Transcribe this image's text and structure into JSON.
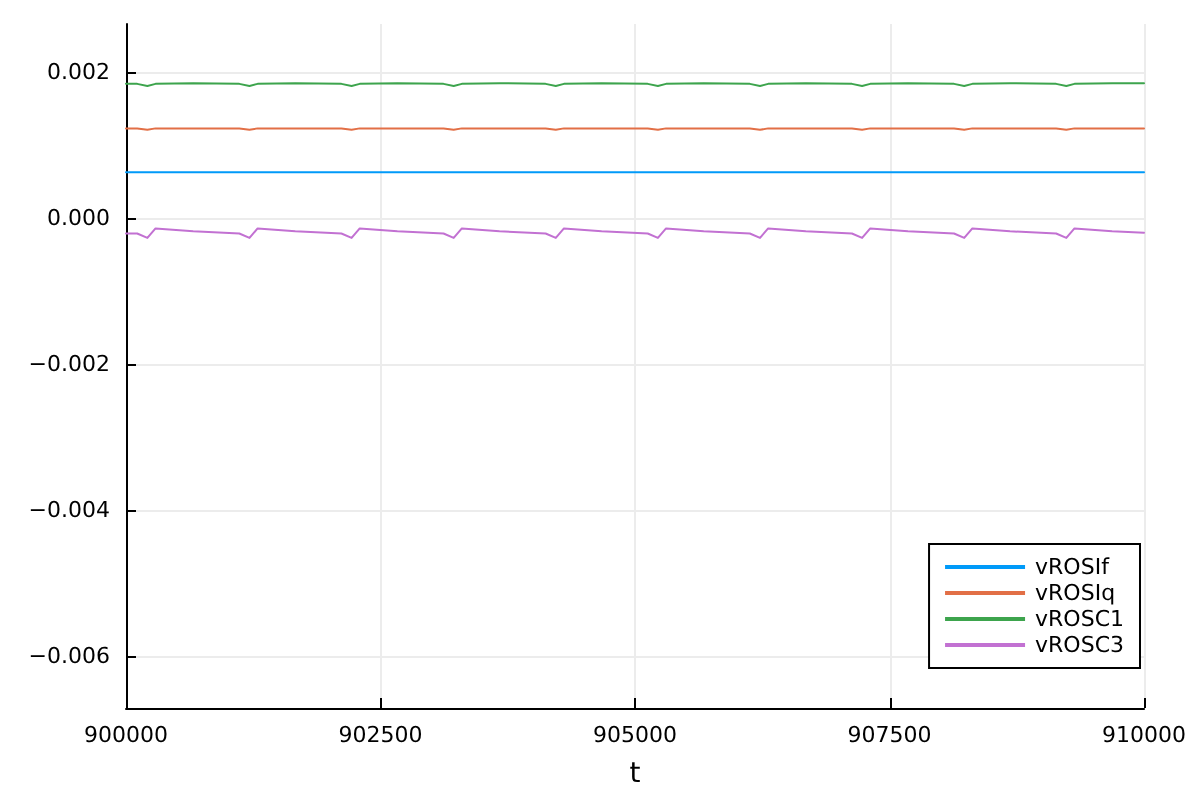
{
  "chart_data": {
    "type": "line",
    "xlabel": "t",
    "x": [
      900000,
      900110,
      900210,
      900290,
      900660,
      901113,
      901213,
      901293,
      901663,
      902116,
      902216,
      902296,
      902666,
      903119,
      903219,
      903299,
      903669,
      904122,
      904222,
      904302,
      904672,
      905125,
      905225,
      905305,
      905675,
      906128,
      906228,
      906308,
      906678,
      907131,
      907231,
      907311,
      907681,
      908134,
      908234,
      908314,
      908684,
      909137,
      909237,
      909317,
      909687,
      910000
    ],
    "series": [
      {
        "name": "vROSIf",
        "color": "#009af9",
        "values": [
          0.00063,
          0.00063,
          0.00063,
          0.00063,
          0.00063,
          0.00063,
          0.00063,
          0.00063,
          0.00063,
          0.00063,
          0.00063,
          0.00063,
          0.00063,
          0.00063,
          0.00063,
          0.00063,
          0.00063,
          0.00063,
          0.00063,
          0.00063,
          0.00063,
          0.00063,
          0.00063,
          0.00063,
          0.00063,
          0.00063,
          0.00063,
          0.00063,
          0.00063,
          0.00063,
          0.00063,
          0.00063,
          0.00063,
          0.00063,
          0.00063,
          0.00063,
          0.00063,
          0.00063,
          0.00063,
          0.00063,
          0.00063,
          0.00063
        ]
      },
      {
        "name": "vROSIq",
        "color": "#e26f46",
        "values": [
          0.00123,
          0.00123,
          0.00121,
          0.00123,
          0.00123,
          0.00123,
          0.00121,
          0.00123,
          0.00123,
          0.00123,
          0.00121,
          0.00123,
          0.00123,
          0.00123,
          0.00121,
          0.00123,
          0.00123,
          0.00123,
          0.00121,
          0.00123,
          0.00123,
          0.00123,
          0.00121,
          0.00123,
          0.00123,
          0.00123,
          0.00121,
          0.00123,
          0.00123,
          0.00123,
          0.00121,
          0.00123,
          0.00123,
          0.00123,
          0.00121,
          0.00123,
          0.00123,
          0.00123,
          0.00121,
          0.00123,
          0.00123,
          0.00123
        ]
      },
      {
        "name": "vROSC1",
        "color": "#3da44d",
        "values": [
          0.00184,
          0.00184,
          0.00181,
          0.00184,
          0.00185,
          0.00184,
          0.00181,
          0.00184,
          0.00185,
          0.00184,
          0.00181,
          0.00184,
          0.00185,
          0.00184,
          0.00181,
          0.00184,
          0.00185,
          0.00184,
          0.00181,
          0.00184,
          0.00185,
          0.00184,
          0.00181,
          0.00184,
          0.00185,
          0.00184,
          0.00181,
          0.00184,
          0.00185,
          0.00184,
          0.00181,
          0.00184,
          0.00185,
          0.00184,
          0.00181,
          0.00184,
          0.00185,
          0.00184,
          0.00181,
          0.00184,
          0.00185,
          0.00185
        ]
      },
      {
        "name": "vROSC3",
        "color": "#c271d2",
        "values": [
          -0.00021,
          -0.00021,
          -0.00027,
          -0.00014,
          -0.00018,
          -0.00021,
          -0.00027,
          -0.00014,
          -0.00018,
          -0.00021,
          -0.00027,
          -0.00014,
          -0.00018,
          -0.00021,
          -0.00027,
          -0.00014,
          -0.00018,
          -0.00021,
          -0.00027,
          -0.00014,
          -0.00018,
          -0.00021,
          -0.00027,
          -0.00014,
          -0.00018,
          -0.00021,
          -0.00027,
          -0.00014,
          -0.00018,
          -0.00021,
          -0.00027,
          -0.00014,
          -0.00018,
          -0.00021,
          -0.00027,
          -0.00014,
          -0.00018,
          -0.00021,
          -0.00027,
          -0.00014,
          -0.00018,
          -0.0002
        ]
      }
    ],
    "xlim": [
      900000,
      910000
    ],
    "xticks": [
      900000,
      902500,
      905000,
      907500,
      910000
    ],
    "ylim": [
      -0.00671,
      0.00266
    ],
    "yticks": [
      {
        "value": -0.006,
        "label": "−0.006"
      },
      {
        "value": -0.004,
        "label": "−0.004"
      },
      {
        "value": -0.002,
        "label": "−0.002"
      },
      {
        "value": 0,
        "label": "0.000"
      },
      {
        "value": 0.002,
        "label": "0.002"
      }
    ],
    "grid": true,
    "legend": "bottom right",
    "marker": "none",
    "line_style": "solid"
  }
}
